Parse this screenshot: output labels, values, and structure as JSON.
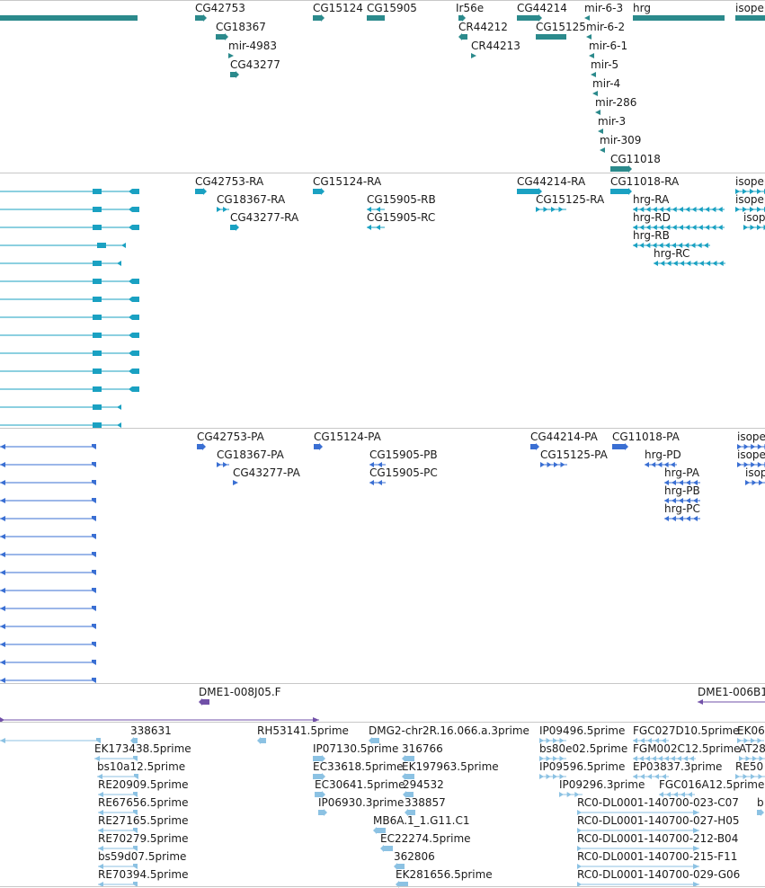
{
  "colors": {
    "gene": "#2b8a8c",
    "mrna": "#1aa1c2",
    "protein": "#3a6fd3",
    "clone": "#7150a8",
    "est": "#8cc2e3",
    "separator": "#c8c8c8"
  },
  "tracks": [
    {
      "id": "genes",
      "features": [
        {
          "label": "CG42753"
        },
        {
          "label": "CG15124"
        },
        {
          "label": "CG15905"
        },
        {
          "label": "Ir56e"
        },
        {
          "label": "CG44214"
        },
        {
          "label": "mir-6-3"
        },
        {
          "label": "hrg"
        },
        {
          "label": "isopep"
        },
        {
          "label": "CG18367"
        },
        {
          "label": "CR44212"
        },
        {
          "label": "CG15125"
        },
        {
          "label": "mir-6-2"
        },
        {
          "label": "mir-4983"
        },
        {
          "label": "CR44213"
        },
        {
          "label": "mir-6-1"
        },
        {
          "label": "CG43277"
        },
        {
          "label": "mir-5"
        },
        {
          "label": "mir-4"
        },
        {
          "label": "mir-286"
        },
        {
          "label": "mir-3"
        },
        {
          "label": "mir-309"
        },
        {
          "label": "CG11018"
        }
      ]
    },
    {
      "id": "transcripts",
      "features": [
        {
          "label": "CG42753-RA"
        },
        {
          "label": "CG15124-RA"
        },
        {
          "label": "CG44214-RA"
        },
        {
          "label": "CG11018-RA"
        },
        {
          "label": "isopep"
        },
        {
          "label": "CG18367-RA"
        },
        {
          "label": "CG15905-RB"
        },
        {
          "label": "CG15125-RA"
        },
        {
          "label": "hrg-RA"
        },
        {
          "label": "isopep"
        },
        {
          "label": "CG43277-RA"
        },
        {
          "label": "CG15905-RC"
        },
        {
          "label": "hrg-RD"
        },
        {
          "label": "isop"
        },
        {
          "label": "hrg-RB"
        },
        {
          "label": "hrg-RC"
        }
      ]
    },
    {
      "id": "proteins",
      "features": [
        {
          "label": "CG42753-PA"
        },
        {
          "label": "CG15124-PA"
        },
        {
          "label": "CG44214-PA"
        },
        {
          "label": "CG11018-PA"
        },
        {
          "label": "isope"
        },
        {
          "label": "CG18367-PA"
        },
        {
          "label": "CG15905-PB"
        },
        {
          "label": "CG15125-PA"
        },
        {
          "label": "hrg-PD"
        },
        {
          "label": "isope"
        },
        {
          "label": "CG43277-PA"
        },
        {
          "label": "CG15905-PC"
        },
        {
          "label": "hrg-PA"
        },
        {
          "label": "isop"
        },
        {
          "label": "hrg-PB"
        },
        {
          "label": "hrg-PC"
        }
      ]
    },
    {
      "id": "clones",
      "features": [
        {
          "label": "DME1-008J05.F"
        },
        {
          "label": "DME1-006B1"
        }
      ]
    },
    {
      "id": "ests",
      "features": [
        {
          "label": "338631"
        },
        {
          "label": "RH53141.5prime"
        },
        {
          "label": "DMG2-chr2R.16.066.a.3prime"
        },
        {
          "label": "IP09496.5prime"
        },
        {
          "label": "FGC027D10.5prime"
        },
        {
          "label": "EK06"
        },
        {
          "label": "EK173438.5prime"
        },
        {
          "label": "IP07130.5prime"
        },
        {
          "label": "316766"
        },
        {
          "label": "bs80e02.5prime"
        },
        {
          "label": "FGM002C12.5prime"
        },
        {
          "label": "AT28"
        },
        {
          "label": "bs10a12.5prime"
        },
        {
          "label": "EC33618.5prime"
        },
        {
          "label": "EK197963.5prime"
        },
        {
          "label": "IP09596.5prime"
        },
        {
          "label": "EP03837.3prime"
        },
        {
          "label": "RE50"
        },
        {
          "label": "RE20909.5prime"
        },
        {
          "label": "EC30641.5prime"
        },
        {
          "label": "294532"
        },
        {
          "label": "IP09296.3prime"
        },
        {
          "label": "FGC016A12.5prime"
        },
        {
          "label": "RE67656.5prime"
        },
        {
          "label": "IP06930.3prime"
        },
        {
          "label": "338857"
        },
        {
          "label": "RC0-DL0001-140700-023-C07"
        },
        {
          "label": "b"
        },
        {
          "label": "RE27165.5prime"
        },
        {
          "label": "MB6A.1_1.G11.C1"
        },
        {
          "label": "RC0-DL0001-140700-027-H05"
        },
        {
          "label": "RE70279.5prime"
        },
        {
          "label": "EC22274.5prime"
        },
        {
          "label": "RC0-DL0001-140700-212-B04"
        },
        {
          "label": "bs59d07.5prime"
        },
        {
          "label": "362806"
        },
        {
          "label": "RC0-DL0001-140700-215-F11"
        },
        {
          "label": "RE70394.5prime"
        },
        {
          "label": "EK281656.5prime"
        },
        {
          "label": "RC0-DL0001-140700-029-G06"
        }
      ]
    }
  ]
}
